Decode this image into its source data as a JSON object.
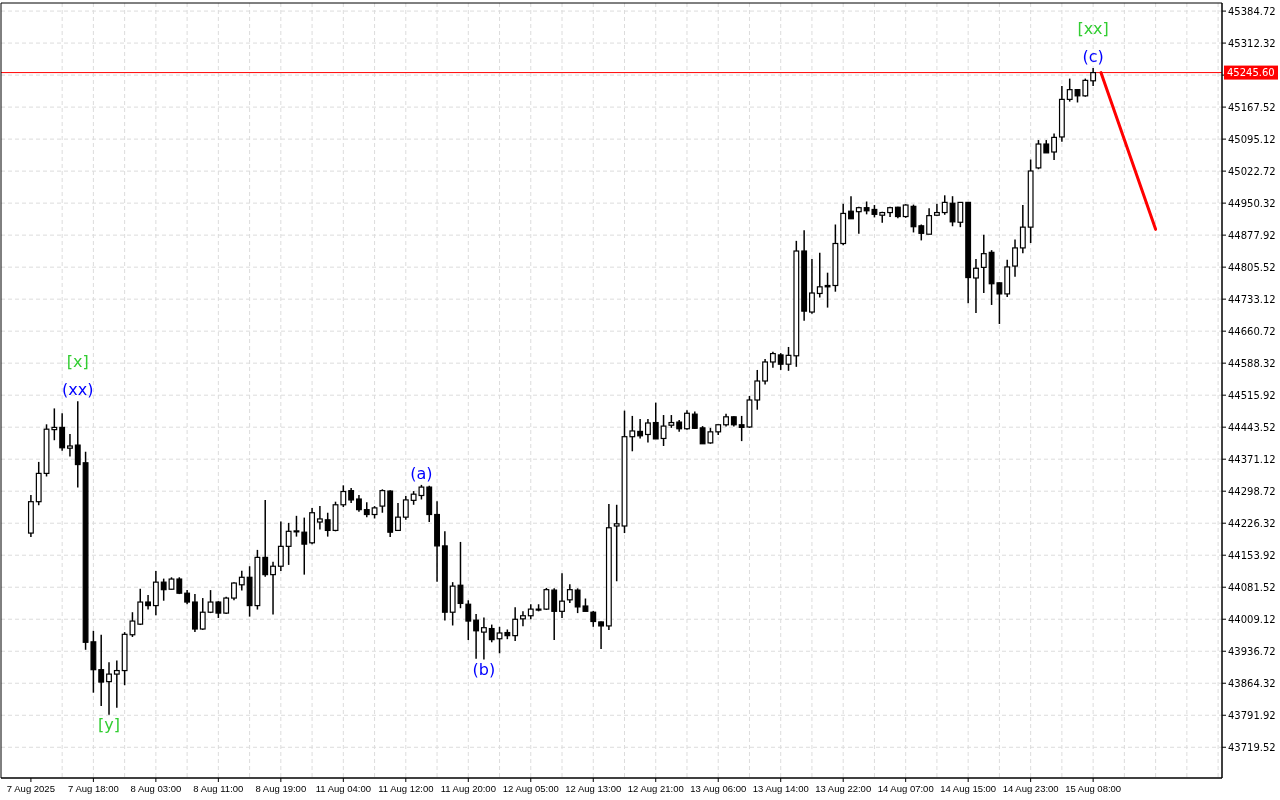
{
  "chart_data": {
    "type": "candlestick",
    "categories": [
      "7 Aug 2025",
      null,
      null,
      null,
      null,
      null,
      null,
      null,
      "7 Aug 18:00",
      null,
      null,
      null,
      null,
      null,
      null,
      null,
      "8 Aug 03:00",
      null,
      null,
      null,
      null,
      null,
      null,
      null,
      "8 Aug 11:00",
      null,
      null,
      null,
      null,
      null,
      null,
      null,
      "8 Aug 19:00",
      null,
      null,
      null,
      null,
      null,
      null,
      null,
      "11 Aug 04:00",
      null,
      null,
      null,
      null,
      null,
      null,
      null,
      "11 Aug 12:00",
      null,
      null,
      null,
      null,
      null,
      null,
      null,
      "11 Aug 20:00",
      null,
      null,
      null,
      null,
      null,
      null,
      null,
      "12 Aug 05:00",
      null,
      null,
      null,
      null,
      null,
      null,
      null,
      "12 Aug 13:00",
      null,
      null,
      null,
      null,
      null,
      null,
      null,
      "12 Aug 21:00",
      null,
      null,
      null,
      null,
      null,
      null,
      null,
      "13 Aug 06:00",
      null,
      null,
      null,
      null,
      null,
      null,
      null,
      "13 Aug 14:00",
      null,
      null,
      null,
      null,
      null,
      null,
      null,
      "13 Aug 22:00",
      null,
      null,
      null,
      null,
      null,
      null,
      null,
      "14 Aug 07:00",
      null,
      null,
      null,
      null,
      null,
      null,
      null,
      "14 Aug 15:00",
      null,
      null,
      null,
      null,
      null,
      null,
      null,
      "14 Aug 23:00",
      null,
      null,
      null,
      null,
      null,
      null,
      null,
      "15 Aug 08:00",
      null,
      null,
      null,
      null,
      null,
      null,
      null,
      null,
      null,
      null,
      null,
      null,
      null,
      null,
      null,
      null
    ],
    "ohlc": [
      [
        44204,
        44290,
        44195,
        44275
      ],
      [
        44275,
        44365,
        44267,
        44339
      ],
      [
        44339,
        44450,
        44332,
        44439
      ],
      [
        44438,
        44486,
        44414,
        44443
      ],
      [
        44443,
        44475,
        44390,
        44397
      ],
      [
        44396,
        44428,
        44377,
        44401
      ],
      [
        44403,
        44502,
        44307,
        44359
      ],
      [
        44363,
        44388,
        43940,
        43957
      ],
      [
        43958,
        43983,
        43843,
        43895
      ],
      [
        43895,
        43974,
        43813,
        43867
      ],
      [
        43868,
        43912,
        43793,
        43885
      ],
      [
        43885,
        43916,
        43809,
        43893
      ],
      [
        43893,
        43980,
        43860,
        43975
      ],
      [
        43974,
        44025,
        43969,
        44005
      ],
      [
        43998,
        44078,
        43996,
        44048
      ],
      [
        44048,
        44064,
        44031,
        44040
      ],
      [
        44040,
        44118,
        44018,
        44093
      ],
      [
        44093,
        44101,
        44051,
        44076
      ],
      [
        44077,
        44104,
        44076,
        44100
      ],
      [
        44100,
        44104,
        44066,
        44068
      ],
      [
        44068,
        44075,
        44043,
        44048
      ],
      [
        44048,
        44066,
        43980,
        43987
      ],
      [
        43987,
        44057,
        43985,
        44025
      ],
      [
        44025,
        44075,
        44023,
        44048
      ],
      [
        44048,
        44050,
        44012,
        44023
      ],
      [
        44023,
        44060,
        44021,
        44057
      ],
      [
        44057,
        44093,
        44052,
        44091
      ],
      [
        44087,
        44119,
        44074,
        44104
      ],
      [
        44104,
        44129,
        44015,
        44040
      ],
      [
        44040,
        44166,
        44031,
        44149
      ],
      [
        44149,
        44279,
        44105,
        44110
      ],
      [
        44110,
        44139,
        44020,
        44129
      ],
      [
        44129,
        44230,
        44118,
        44174
      ],
      [
        44174,
        44227,
        44132,
        44208
      ],
      [
        44208,
        44243,
        44196,
        44209
      ],
      [
        44206,
        44239,
        44110,
        44179
      ],
      [
        44182,
        44261,
        44179,
        44250
      ],
      [
        44229,
        44265,
        44212,
        44236
      ],
      [
        44234,
        44250,
        44196,
        44210
      ],
      [
        44210,
        44275,
        44208,
        44268
      ],
      [
        44268,
        44312,
        44263,
        44298
      ],
      [
        44300,
        44306,
        44272,
        44279
      ],
      [
        44281,
        44290,
        44252,
        44257
      ],
      [
        44257,
        44274,
        44240,
        44246
      ],
      [
        44246,
        44265,
        44237,
        44261
      ],
      [
        44265,
        44303,
        44250,
        44300
      ],
      [
        44299,
        44301,
        44195,
        44206
      ],
      [
        44210,
        44272,
        44210,
        44240
      ],
      [
        44240,
        44288,
        44234,
        44279
      ],
      [
        44278,
        44299,
        44268,
        44292
      ],
      [
        44289,
        44313,
        44280,
        44308
      ],
      [
        44308,
        44311,
        44229,
        44246
      ],
      [
        44246,
        44276,
        44094,
        44175
      ],
      [
        44175,
        44208,
        44006,
        44025
      ],
      [
        44025,
        44093,
        43995,
        44084
      ],
      [
        44086,
        44184,
        44034,
        44045
      ],
      [
        44043,
        44052,
        43962,
        44005
      ],
      [
        44007,
        44021,
        43920,
        43983
      ],
      [
        43980,
        44013,
        43918,
        43990
      ],
      [
        43988,
        43997,
        43957,
        43963
      ],
      [
        43965,
        43992,
        43932,
        43978
      ],
      [
        43979,
        43986,
        43964,
        43972
      ],
      [
        43972,
        44036,
        43960,
        44009
      ],
      [
        44010,
        44027,
        43993,
        44017
      ],
      [
        44017,
        44043,
        44009,
        44032
      ],
      [
        44031,
        44043,
        44027,
        44032
      ],
      [
        44032,
        44080,
        44030,
        44076
      ],
      [
        44075,
        44079,
        43962,
        44027
      ],
      [
        44027,
        44113,
        44012,
        44050
      ],
      [
        44053,
        44088,
        44046,
        44076
      ],
      [
        44075,
        44079,
        44023,
        44037
      ],
      [
        44039,
        44056,
        44027,
        44027
      ],
      [
        44025,
        44028,
        43992,
        44004
      ],
      [
        44003,
        44004,
        43942,
        43994
      ],
      [
        43994,
        44270,
        43985,
        44216
      ],
      [
        44220,
        44268,
        44095,
        44225
      ],
      [
        44220,
        44481,
        44204,
        44422
      ],
      [
        44422,
        44469,
        44389,
        44435
      ],
      [
        44434,
        44462,
        44418,
        44424
      ],
      [
        44427,
        44462,
        44409,
        44453
      ],
      [
        44454,
        44499,
        44417,
        44417
      ],
      [
        44418,
        44471,
        44401,
        44446
      ],
      [
        44448,
        44471,
        44442,
        44454
      ],
      [
        44455,
        44460,
        44433,
        44440
      ],
      [
        44440,
        44482,
        44438,
        44475
      ],
      [
        44473,
        44479,
        44440,
        44441
      ],
      [
        44442,
        44446,
        44406,
        44406
      ],
      [
        44408,
        44442,
        44406,
        44433
      ],
      [
        44433,
        44450,
        44426,
        44449
      ],
      [
        44449,
        44474,
        44445,
        44467
      ],
      [
        44467,
        44468,
        44445,
        44449
      ],
      [
        44449,
        44469,
        44412,
        44443
      ],
      [
        44444,
        44514,
        44442,
        44505
      ],
      [
        44505,
        44573,
        44483,
        44548
      ],
      [
        44548,
        44598,
        44540,
        44591
      ],
      [
        44591,
        44614,
        44578,
        44610
      ],
      [
        44607,
        44611,
        44573,
        44586
      ],
      [
        44586,
        44625,
        44571,
        44606
      ],
      [
        44605,
        44865,
        44580,
        44842
      ],
      [
        44842,
        44889,
        44684,
        44706
      ],
      [
        44704,
        44824,
        44700,
        44747
      ],
      [
        44746,
        44838,
        44737,
        44761
      ],
      [
        44764,
        44793,
        44714,
        44761
      ],
      [
        44764,
        44902,
        44750,
        44859
      ],
      [
        44859,
        44949,
        44855,
        44927
      ],
      [
        44932,
        44966,
        44915,
        44915
      ],
      [
        44931,
        44942,
        44881,
        44940
      ],
      [
        44940,
        44954,
        44925,
        44933
      ],
      [
        44936,
        44946,
        44918,
        44925
      ],
      [
        44923,
        44931,
        44906,
        44929
      ],
      [
        44929,
        44942,
        44919,
        44940
      ],
      [
        44941,
        44942,
        44916,
        44920
      ],
      [
        44920,
        44948,
        44917,
        44946
      ],
      [
        44943,
        44947,
        44884,
        44897
      ],
      [
        44899,
        44902,
        44866,
        44882
      ],
      [
        44880,
        44939,
        44880,
        44922
      ],
      [
        44923,
        44949,
        44922,
        44929
      ],
      [
        44929,
        44968,
        44924,
        44952
      ],
      [
        44950,
        44966,
        44898,
        44908
      ],
      [
        44907,
        44952,
        44896,
        44952
      ],
      [
        44952,
        44953,
        44724,
        44782
      ],
      [
        44781,
        44824,
        44702,
        44803
      ],
      [
        44805,
        44879,
        44747,
        44836
      ],
      [
        44839,
        44844,
        44720,
        44768
      ],
      [
        44770,
        44771,
        44677,
        44745
      ],
      [
        44745,
        44822,
        44738,
        44806
      ],
      [
        44808,
        44868,
        44784,
        44849
      ],
      [
        44849,
        44946,
        44837,
        44896
      ],
      [
        44896,
        45049,
        44860,
        45023
      ],
      [
        45030,
        45093,
        45027,
        45084
      ],
      [
        45084,
        45093,
        45064,
        45064
      ],
      [
        45066,
        45108,
        45048,
        45099
      ],
      [
        45100,
        45215,
        45089,
        45185
      ],
      [
        45185,
        45232,
        45180,
        45207
      ],
      [
        45207,
        45208,
        45178,
        45193
      ],
      [
        45193,
        45232,
        45191,
        45228
      ],
      [
        45227,
        45256,
        45215,
        45245.6
      ],
      null,
      null,
      null,
      null,
      null,
      null,
      null,
      null,
      null,
      null,
      null,
      null,
      null,
      null,
      null,
      null
    ],
    "series": [
      {
        "type": "line",
        "color": "#ff0000",
        "values": [
          null,
          null,
          null,
          null,
          null,
          null,
          null,
          null,
          null,
          null,
          null,
          null,
          null,
          null,
          null,
          null,
          null,
          null,
          null,
          null,
          null,
          null,
          null,
          null,
          null,
          null,
          null,
          null,
          null,
          null,
          null,
          null,
          null,
          null,
          null,
          null,
          null,
          null,
          null,
          null,
          null,
          null,
          null,
          null,
          null,
          null,
          null,
          null,
          null,
          null,
          null,
          null,
          null,
          null,
          null,
          null,
          null,
          null,
          null,
          null,
          null,
          null,
          null,
          null,
          null,
          null,
          null,
          null,
          null,
          null,
          null,
          null,
          null,
          null,
          null,
          null,
          null,
          null,
          null,
          null,
          null,
          null,
          null,
          null,
          null,
          null,
          null,
          null,
          null,
          null,
          null,
          null,
          null,
          null,
          null,
          null,
          null,
          null,
          null,
          null,
          null,
          null,
          null,
          null,
          null,
          null,
          null,
          null,
          null,
          null,
          null,
          null,
          null,
          null,
          null,
          null,
          null,
          null,
          null,
          null,
          null,
          null,
          null,
          null,
          null,
          null,
          null,
          null,
          null,
          null,
          null,
          null,
          null,
          null,
          null,
          null,
          null,
          45245.6,
          null,
          null,
          null,
          null,
          null,
          null,
          44891,
          null,
          null,
          null,
          null,
          null,
          null,
          null,
          null
        ]
      }
    ],
    "ylim": [
      43650,
      45403
    ],
    "yticks": [
      43719.52,
      43791.92,
      43864.32,
      43936.72,
      44009.12,
      44081.52,
      44153.92,
      44226.32,
      44298.72,
      44371.12,
      44443.52,
      44515.92,
      44588.32,
      44660.72,
      44733.12,
      44805.52,
      44877.92,
      44950.32,
      45022.72,
      45095.12,
      45167.52,
      {
        "value": 45239.92,
        "label": null
      },
      45312.32,
      45384.72
    ],
    "ref_lines": [
      {
        "axis": "y",
        "value": 45245.6,
        "label": "45245.60",
        "color": "#ff0000"
      }
    ],
    "annotations": [
      {
        "text": "(xx)",
        "y": 44502
      },
      {
        "text": "[x]",
        "y": 44502
      },
      {
        "text": "[y]",
        "y": 43793
      },
      {
        "text": "(a)",
        "y": 44313
      },
      {
        "text": "(b)",
        "y": 43918
      },
      {
        "text": "(c)",
        "y": 45256
      },
      {
        "text": "[xx]",
        "y": 45256
      }
    ],
    "grid": true
  }
}
